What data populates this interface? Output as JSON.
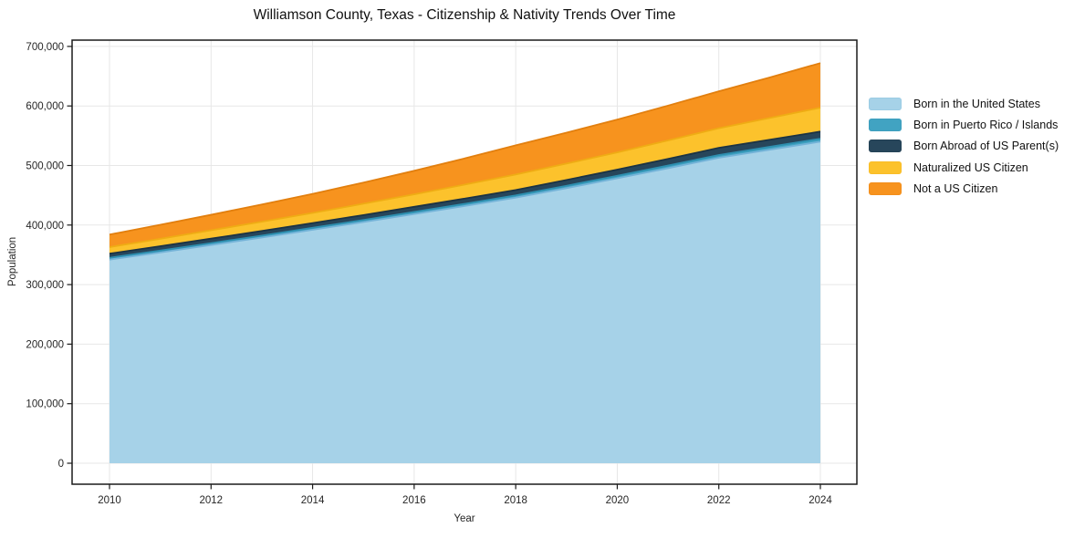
{
  "title": "Williamson County, Texas - Citizenship & Nativity Trends Over Time",
  "x_axis": {
    "label": "Year",
    "tick_values": [
      2010,
      2012,
      2014,
      2016,
      2018,
      2020,
      2022,
      2024
    ],
    "tick_labels": [
      "2010",
      "2012",
      "2014",
      "2016",
      "2018",
      "2020",
      "2022",
      "2024"
    ]
  },
  "y_axis": {
    "label": "Population",
    "tick_values": [
      0,
      100000,
      200000,
      300000,
      400000,
      500000,
      600000,
      700000
    ],
    "tick_labels": [
      "0",
      "100,000",
      "200,000",
      "300,000",
      "400,000",
      "500,000",
      "600,000",
      "700,000"
    ]
  },
  "legend": {
    "position": "right",
    "items": [
      {
        "label": "Born in the United States"
      },
      {
        "label": "Born in Puerto Rico / Islands"
      },
      {
        "label": "Born Abroad of US Parent(s)"
      },
      {
        "label": "Naturalized US Citizen"
      },
      {
        "label": "Not a US Citizen"
      }
    ]
  },
  "chart_data": {
    "type": "area",
    "stacked": true,
    "title": "Williamson County, Texas - Citizenship & Nativity Trends Over Time",
    "xlabel": "Year",
    "ylabel": "Population",
    "xlim": [
      2010,
      2024
    ],
    "ylim": [
      0,
      700000
    ],
    "grid": true,
    "legend_position": "right",
    "x": [
      2010,
      2011,
      2012,
      2013,
      2014,
      2015,
      2016,
      2017,
      2018,
      2019,
      2020,
      2021,
      2022,
      2023,
      2024
    ],
    "series": [
      {
        "name": "Born in the United States",
        "color": "#A6D2E8",
        "edge": "#74B3D8",
        "values": [
          342000,
          354000,
          366500,
          379000,
          392000,
          405000,
          418500,
          432000,
          446000,
          462000,
          478500,
          495500,
          513000,
          526500,
          540000
        ]
      },
      {
        "name": "Born in Puerto Rico / Islands",
        "color": "#41A3C2",
        "edge": "#2E8FB0",
        "values": [
          3000,
          3100,
          3200,
          3300,
          3400,
          3500,
          3600,
          3700,
          3800,
          4000,
          4200,
          4400,
          4600,
          4800,
          5000
        ]
      },
      {
        "name": "Born Abroad of US Parent(s)",
        "color": "#27465B",
        "edge": "#1B3344",
        "values": [
          7000,
          7300,
          7500,
          7800,
          8000,
          8300,
          8500,
          8800,
          9000,
          9700,
          10400,
          11200,
          12000,
          12000,
          12000
        ]
      },
      {
        "name": "Naturalized US Citizen",
        "color": "#FCC22C",
        "edge": "#EFAC14",
        "values": [
          11000,
          12500,
          14000,
          15500,
          17000,
          19000,
          21000,
          23500,
          26000,
          27500,
          29000,
          31000,
          33000,
          36500,
          40000
        ]
      },
      {
        "name": "Not a US Citizen",
        "color": "#F7931E",
        "edge": "#E27F0E",
        "values": [
          21000,
          23500,
          26000,
          29000,
          32000,
          35500,
          39500,
          44000,
          49000,
          52000,
          55000,
          58500,
          62000,
          68000,
          75000
        ]
      }
    ]
  }
}
